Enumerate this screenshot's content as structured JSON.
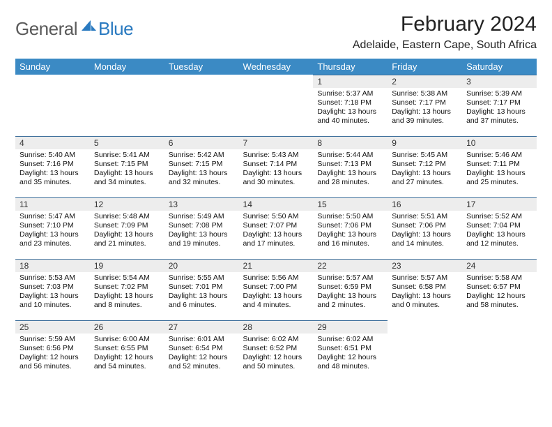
{
  "logo": {
    "text1": "General",
    "text2": "Blue"
  },
  "title": "February 2024",
  "location": "Adelaide, Eastern Cape, South Africa",
  "colors": {
    "header_bg": "#3b8ac4",
    "header_text": "#ffffff",
    "daynum_bg": "#ededed",
    "rule": "#3b6d9a",
    "logo_gray": "#5a5a5a",
    "logo_blue": "#2a7ac0",
    "page_bg": "#ffffff"
  },
  "weekdays": [
    "Sunday",
    "Monday",
    "Tuesday",
    "Wednesday",
    "Thursday",
    "Friday",
    "Saturday"
  ],
  "first_weekday_index": 4,
  "days": [
    {
      "n": 1,
      "sunrise": "5:37 AM",
      "sunset": "7:18 PM",
      "daylight": "13 hours and 40 minutes."
    },
    {
      "n": 2,
      "sunrise": "5:38 AM",
      "sunset": "7:17 PM",
      "daylight": "13 hours and 39 minutes."
    },
    {
      "n": 3,
      "sunrise": "5:39 AM",
      "sunset": "7:17 PM",
      "daylight": "13 hours and 37 minutes."
    },
    {
      "n": 4,
      "sunrise": "5:40 AM",
      "sunset": "7:16 PM",
      "daylight": "13 hours and 35 minutes."
    },
    {
      "n": 5,
      "sunrise": "5:41 AM",
      "sunset": "7:15 PM",
      "daylight": "13 hours and 34 minutes."
    },
    {
      "n": 6,
      "sunrise": "5:42 AM",
      "sunset": "7:15 PM",
      "daylight": "13 hours and 32 minutes."
    },
    {
      "n": 7,
      "sunrise": "5:43 AM",
      "sunset": "7:14 PM",
      "daylight": "13 hours and 30 minutes."
    },
    {
      "n": 8,
      "sunrise": "5:44 AM",
      "sunset": "7:13 PM",
      "daylight": "13 hours and 28 minutes."
    },
    {
      "n": 9,
      "sunrise": "5:45 AM",
      "sunset": "7:12 PM",
      "daylight": "13 hours and 27 minutes."
    },
    {
      "n": 10,
      "sunrise": "5:46 AM",
      "sunset": "7:11 PM",
      "daylight": "13 hours and 25 minutes."
    },
    {
      "n": 11,
      "sunrise": "5:47 AM",
      "sunset": "7:10 PM",
      "daylight": "13 hours and 23 minutes."
    },
    {
      "n": 12,
      "sunrise": "5:48 AM",
      "sunset": "7:09 PM",
      "daylight": "13 hours and 21 minutes."
    },
    {
      "n": 13,
      "sunrise": "5:49 AM",
      "sunset": "7:08 PM",
      "daylight": "13 hours and 19 minutes."
    },
    {
      "n": 14,
      "sunrise": "5:50 AM",
      "sunset": "7:07 PM",
      "daylight": "13 hours and 17 minutes."
    },
    {
      "n": 15,
      "sunrise": "5:50 AM",
      "sunset": "7:06 PM",
      "daylight": "13 hours and 16 minutes."
    },
    {
      "n": 16,
      "sunrise": "5:51 AM",
      "sunset": "7:06 PM",
      "daylight": "13 hours and 14 minutes."
    },
    {
      "n": 17,
      "sunrise": "5:52 AM",
      "sunset": "7:04 PM",
      "daylight": "13 hours and 12 minutes."
    },
    {
      "n": 18,
      "sunrise": "5:53 AM",
      "sunset": "7:03 PM",
      "daylight": "13 hours and 10 minutes."
    },
    {
      "n": 19,
      "sunrise": "5:54 AM",
      "sunset": "7:02 PM",
      "daylight": "13 hours and 8 minutes."
    },
    {
      "n": 20,
      "sunrise": "5:55 AM",
      "sunset": "7:01 PM",
      "daylight": "13 hours and 6 minutes."
    },
    {
      "n": 21,
      "sunrise": "5:56 AM",
      "sunset": "7:00 PM",
      "daylight": "13 hours and 4 minutes."
    },
    {
      "n": 22,
      "sunrise": "5:57 AM",
      "sunset": "6:59 PM",
      "daylight": "13 hours and 2 minutes."
    },
    {
      "n": 23,
      "sunrise": "5:57 AM",
      "sunset": "6:58 PM",
      "daylight": "13 hours and 0 minutes."
    },
    {
      "n": 24,
      "sunrise": "5:58 AM",
      "sunset": "6:57 PM",
      "daylight": "12 hours and 58 minutes."
    },
    {
      "n": 25,
      "sunrise": "5:59 AM",
      "sunset": "6:56 PM",
      "daylight": "12 hours and 56 minutes."
    },
    {
      "n": 26,
      "sunrise": "6:00 AM",
      "sunset": "6:55 PM",
      "daylight": "12 hours and 54 minutes."
    },
    {
      "n": 27,
      "sunrise": "6:01 AM",
      "sunset": "6:54 PM",
      "daylight": "12 hours and 52 minutes."
    },
    {
      "n": 28,
      "sunrise": "6:02 AM",
      "sunset": "6:52 PM",
      "daylight": "12 hours and 50 minutes."
    },
    {
      "n": 29,
      "sunrise": "6:02 AM",
      "sunset": "6:51 PM",
      "daylight": "12 hours and 48 minutes."
    }
  ],
  "labels": {
    "sunrise": "Sunrise:",
    "sunset": "Sunset:",
    "daylight": "Daylight:"
  }
}
